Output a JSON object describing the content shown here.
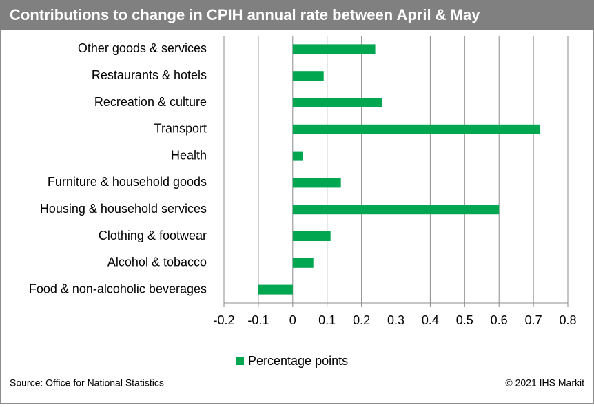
{
  "chart_data": {
    "type": "bar",
    "orientation": "horizontal",
    "title": "Contributions to change in CPIH annual rate between April & May",
    "categories": [
      "Other goods & services",
      "Restaurants & hotels",
      "Recreation & culture",
      "Transport",
      "Health",
      "Furniture & household goods",
      "Housing & household services",
      "Clothing & footwear",
      "Alcohol & tobacco",
      "Food & non-alcoholic beverages"
    ],
    "series": [
      {
        "name": "Percentage points",
        "color": "#00a650",
        "values": [
          0.24,
          0.09,
          0.26,
          0.72,
          0.03,
          0.14,
          0.6,
          0.11,
          0.06,
          -0.1
        ]
      }
    ],
    "xlim": [
      -0.2,
      0.8
    ],
    "xticks": [
      -0.2,
      -0.1,
      0,
      0.1,
      0.2,
      0.3,
      0.4,
      0.5,
      0.6,
      0.7,
      0.8
    ],
    "grid": true,
    "legend": "bottom",
    "source": "Source: Office for National Statistics",
    "copyright": "© 2021 IHS Markit"
  }
}
